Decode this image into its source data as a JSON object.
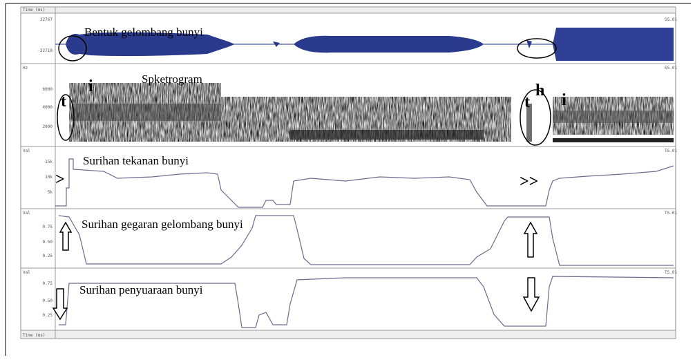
{
  "panels": [
    {
      "title": "Bentuk gelombang bunyi",
      "y_labels": [
        "32767",
        "-32718"
      ],
      "corner": "SS.01",
      "axis_name": "Time (ms)"
    },
    {
      "title": "Spketrogram",
      "axis_name": "Hz",
      "y_labels": [
        "6000",
        "4000",
        "2000"
      ],
      "corner": "SS.01",
      "markers": [
        "t",
        "i",
        "t",
        "h",
        "i"
      ]
    },
    {
      "title": "Surihan tekanan bunyi",
      "axis_name": "Val",
      "y_labels": [
        "15k",
        "10k",
        "5k"
      ],
      "corner": "TS.01",
      "markers": [
        ">",
        ">>"
      ]
    },
    {
      "title": "Surihan gegaran gelombang bunyi",
      "axis_name": "Val",
      "y_labels": [
        "0.75",
        "0.50",
        "0.25"
      ],
      "corner": "TS.01"
    },
    {
      "title": "Surihan penyuaraan bunyi",
      "axis_name": "Val",
      "y_labels": [
        "0.75",
        "0.50",
        "0.25"
      ],
      "corner": "TS.01"
    }
  ],
  "bottom_axis": "Time (ms)"
}
